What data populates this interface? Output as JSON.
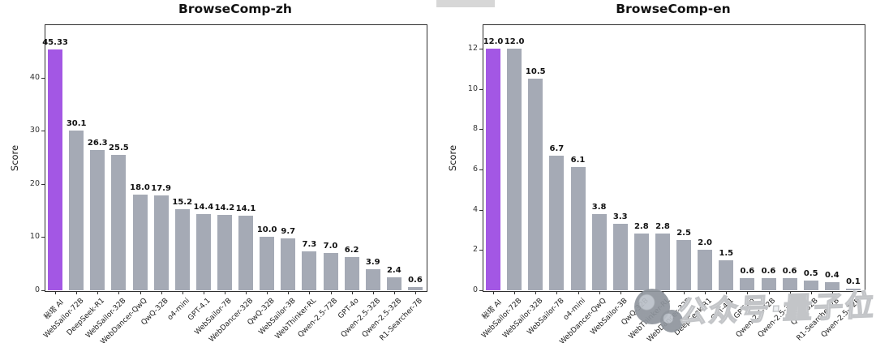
{
  "watermark": {
    "text": "公众号·量子位",
    "logo": "qbitai-logo"
  },
  "chart_data": [
    {
      "type": "bar",
      "title": "BrowseComp-zh",
      "xlabel": "",
      "ylabel": "Score",
      "ylim": [
        0,
        50
      ],
      "yticks": [
        0,
        10,
        20,
        30,
        40
      ],
      "grid": false,
      "legend": "none",
      "highlight_index": 0,
      "highlight_color": "#a357e4",
      "bar_color": "#a5aab5",
      "categories": [
        "秘塔 AI",
        "WebSailor-72B",
        "DeepSeek-R1",
        "WebSailor-32B",
        "WebDancer-QwQ",
        "QwQ-32B",
        "o4-mini",
        "GPT-4.1",
        "WebSailor-7B",
        "WebDancer-32B",
        "QwQ-32B",
        "WebSailor-3B",
        "WebThinker-RL",
        "Qwen-2.5-72B",
        "GPT-4o",
        "Qwen-2.5-32B",
        "Qwen-2.5-32B",
        "R1-Searcher-7B"
      ],
      "values": [
        45.33,
        30.1,
        26.3,
        25.5,
        18.0,
        17.9,
        15.2,
        14.4,
        14.2,
        14.1,
        10.0,
        9.7,
        7.3,
        7.0,
        6.2,
        3.9,
        2.4,
        0.6
      ],
      "value_labels": [
        "45.33",
        "30.1",
        "26.3",
        "25.5",
        "18.0",
        "17.9",
        "15.2",
        "14.4",
        "14.2",
        "14.1",
        "10.0",
        "9.7",
        "7.3",
        "7.0",
        "6.2",
        "3.9",
        "2.4",
        "0.6"
      ]
    },
    {
      "type": "bar",
      "title": "BrowseComp-en",
      "xlabel": "",
      "ylabel": "Score",
      "ylim": [
        0,
        13.2
      ],
      "yticks": [
        0,
        2,
        4,
        6,
        8,
        10,
        12
      ],
      "grid": false,
      "legend": "none",
      "highlight_index": 0,
      "highlight_color": "#a357e4",
      "bar_color": "#a5aab5",
      "categories": [
        "秘塔 AI",
        "WebSailor-72B",
        "WebSailor-32B",
        "WebSailor-7B",
        "o4-mini",
        "WebDancer-QwQ",
        "WebSailor-3B",
        "QwQ-32B",
        "WebThinker-RL",
        "WebDancer-32B",
        "DeepSeek-R1",
        "GPT-4.1",
        "GPT-4o",
        "Qwen-2.5-72B",
        "Qwen-2.5-32B",
        "QwQ-32B",
        "R1-Searcher-7B",
        "Qwen-2.5-32B"
      ],
      "values": [
        12.0,
        12.0,
        10.5,
        6.7,
        6.1,
        3.8,
        3.3,
        2.8,
        2.8,
        2.5,
        2.0,
        1.5,
        0.6,
        0.6,
        0.6,
        0.5,
        0.4,
        0.1
      ],
      "value_labels": [
        "12.0",
        "12.0",
        "10.5",
        "6.7",
        "6.1",
        "3.8",
        "3.3",
        "2.8",
        "2.8",
        "2.5",
        "2.0",
        "1.5",
        "0.6",
        "0.6",
        "0.6",
        "0.5",
        "0.4",
        "0.1"
      ]
    }
  ]
}
